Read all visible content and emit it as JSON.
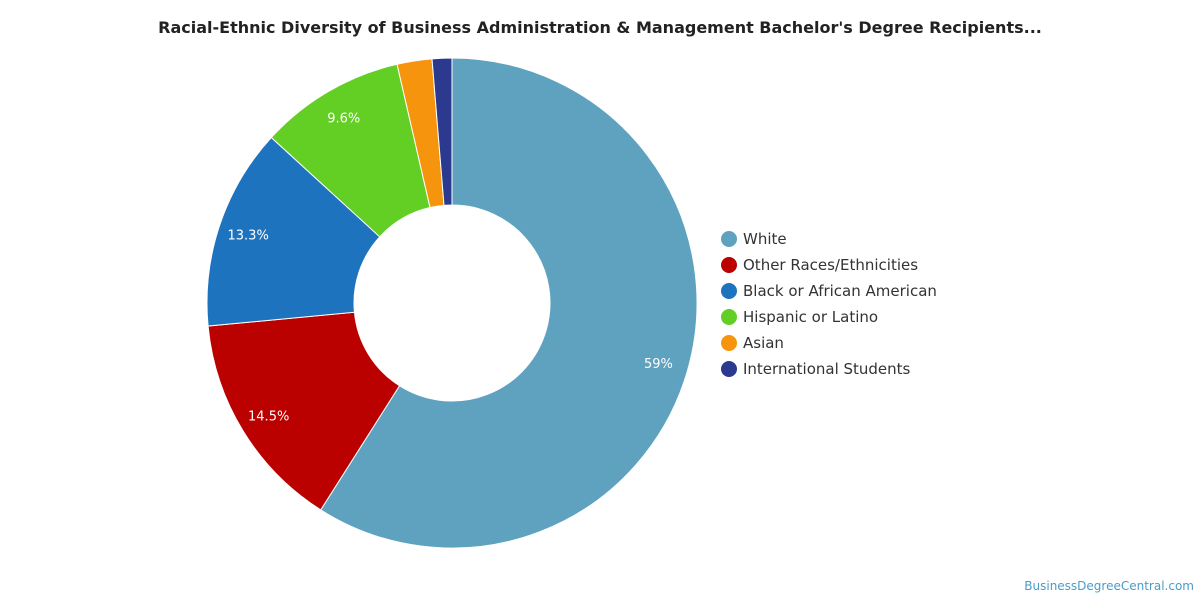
{
  "title": "Racial-Ethnic Diversity of Business Administration & Management Bachelor's Degree Recipients...",
  "credit": "BusinessDegreeCentral.com",
  "chart_data": {
    "type": "pie",
    "donut": true,
    "legend_position": "right",
    "slices": [
      {
        "name": "White",
        "value": 59.0,
        "label": "59%",
        "color": "#5ea2bf"
      },
      {
        "name": "Other Races/Ethnicities",
        "value": 14.5,
        "label": "14.5%",
        "color": "#bb0000"
      },
      {
        "name": "Black or African American",
        "value": 13.3,
        "label": "13.3%",
        "color": "#1e73be"
      },
      {
        "name": "Hispanic or Latino",
        "value": 9.6,
        "label": "9.6%",
        "color": "#63cf24"
      },
      {
        "name": "Asian",
        "value": 2.3,
        "label": "",
        "color": "#f7940d"
      },
      {
        "name": "International Students",
        "value": 1.3,
        "label": "",
        "color": "#2b3a8f"
      }
    ]
  }
}
